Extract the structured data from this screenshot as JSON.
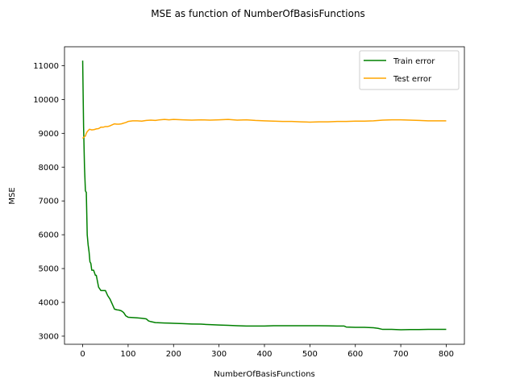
{
  "chart_data": {
    "type": "line",
    "title": "MSE as function of NumberOfBasisFunctions",
    "xlabel": "NumberOfBasisFunctions",
    "ylabel": "MSE",
    "xlim": [
      -40,
      840
    ],
    "ylim": [
      2760,
      11560
    ],
    "xticks": [
      0,
      100,
      200,
      300,
      400,
      500,
      600,
      700,
      800
    ],
    "xtick_labels": [
      "0",
      "100",
      "200",
      "300",
      "400",
      "500",
      "600",
      "700",
      "800"
    ],
    "yticks": [
      3000,
      4000,
      5000,
      6000,
      7000,
      8000,
      9000,
      10000,
      11000
    ],
    "ytick_labels": [
      "3000",
      "4000",
      "5000",
      "6000",
      "7000",
      "8000",
      "9000",
      "10000",
      "11000"
    ],
    "grid": false,
    "legend_position": "upper right",
    "series": [
      {
        "name": "Train error",
        "color": "#008000",
        "x": [
          0,
          2,
          4,
          6,
          8,
          10,
          12,
          14,
          16,
          18,
          20,
          24,
          28,
          30,
          35,
          40,
          45,
          50,
          55,
          60,
          65,
          70,
          75,
          80,
          85,
          90,
          95,
          100,
          110,
          120,
          130,
          140,
          145,
          150,
          160,
          170,
          180,
          190,
          200,
          220,
          240,
          260,
          280,
          300,
          320,
          340,
          360,
          380,
          400,
          420,
          440,
          460,
          480,
          500,
          520,
          540,
          560,
          575,
          580,
          600,
          620,
          640,
          650,
          660,
          680,
          700,
          720,
          740,
          760,
          780,
          800
        ],
        "y": [
          11150,
          9200,
          8000,
          7300,
          7250,
          6000,
          5700,
          5500,
          5200,
          5150,
          4950,
          4950,
          4800,
          4800,
          4450,
          4350,
          4350,
          4350,
          4200,
          4100,
          3950,
          3800,
          3780,
          3770,
          3750,
          3700,
          3600,
          3560,
          3550,
          3540,
          3530,
          3510,
          3450,
          3430,
          3400,
          3395,
          3390,
          3385,
          3380,
          3370,
          3360,
          3355,
          3340,
          3330,
          3320,
          3310,
          3300,
          3300,
          3300,
          3310,
          3310,
          3310,
          3310,
          3310,
          3310,
          3305,
          3300,
          3300,
          3270,
          3260,
          3260,
          3250,
          3230,
          3200,
          3200,
          3190,
          3195,
          3195,
          3200,
          3200,
          3200
        ]
      },
      {
        "name": "Test error",
        "color": "#ffa500",
        "x": [
          0,
          2,
          4,
          6,
          8,
          10,
          12,
          15,
          20,
          25,
          30,
          35,
          40,
          45,
          50,
          55,
          60,
          65,
          70,
          75,
          80,
          85,
          90,
          95,
          100,
          110,
          120,
          130,
          140,
          150,
          160,
          170,
          180,
          190,
          200,
          220,
          240,
          260,
          280,
          300,
          320,
          340,
          360,
          380,
          400,
          420,
          440,
          460,
          480,
          500,
          520,
          540,
          560,
          580,
          600,
          620,
          640,
          660,
          680,
          700,
          720,
          740,
          760,
          780,
          800
        ],
        "y": [
          8850,
          8880,
          8900,
          8920,
          9000,
          9050,
          9080,
          9120,
          9100,
          9110,
          9130,
          9140,
          9180,
          9180,
          9200,
          9200,
          9220,
          9250,
          9280,
          9270,
          9270,
          9280,
          9300,
          9320,
          9350,
          9370,
          9370,
          9360,
          9380,
          9390,
          9380,
          9400,
          9410,
          9400,
          9410,
          9400,
          9390,
          9400,
          9390,
          9400,
          9410,
          9390,
          9400,
          9380,
          9370,
          9360,
          9350,
          9350,
          9340,
          9330,
          9340,
          9340,
          9350,
          9350,
          9360,
          9360,
          9370,
          9390,
          9400,
          9400,
          9390,
          9380,
          9370,
          9370,
          9370
        ]
      }
    ]
  }
}
